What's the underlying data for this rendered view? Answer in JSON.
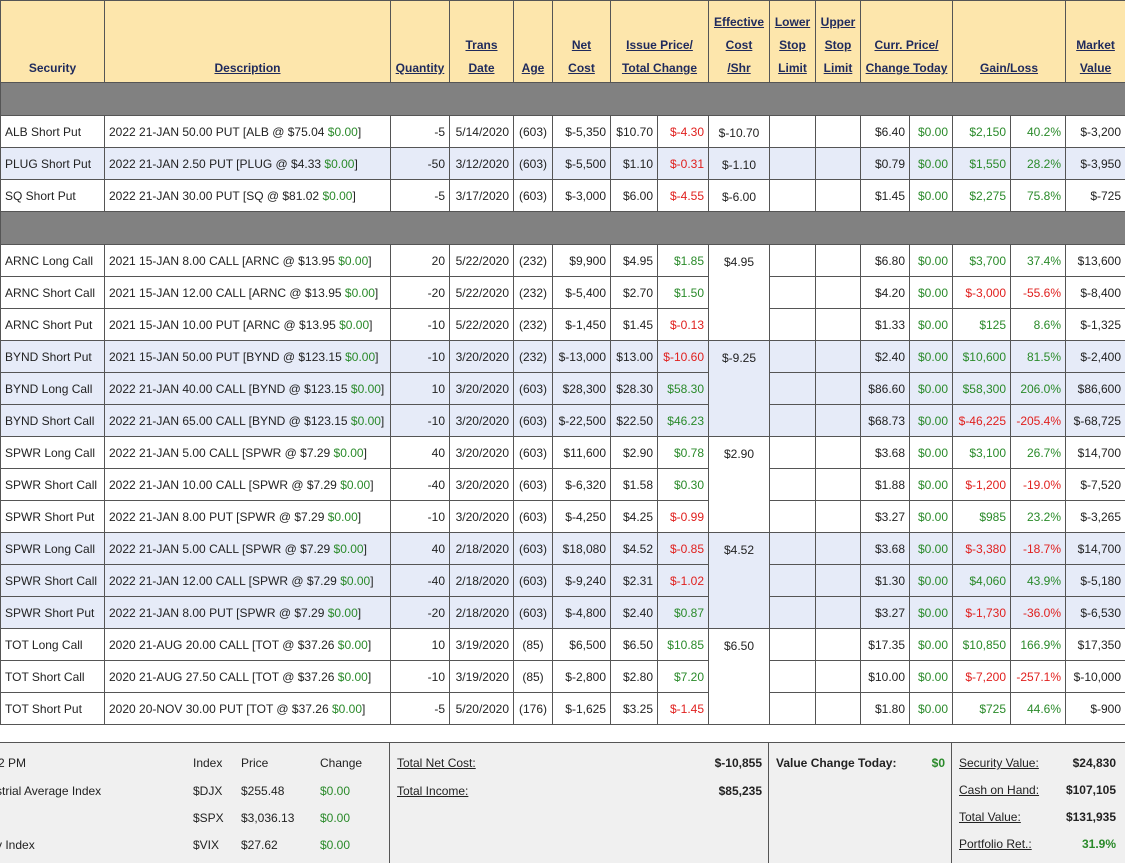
{
  "header": {
    "security": "Security",
    "description": "Description",
    "quantity": "Quantity",
    "trans_date": [
      "Trans",
      "Date"
    ],
    "age": "Age",
    "net_cost": [
      "Net",
      "Cost"
    ],
    "issue": [
      "Issue Price/",
      "Total Change"
    ],
    "effective": [
      "Effective",
      "Cost",
      "/Shr"
    ],
    "lower": [
      "Lower",
      "Stop",
      "Limit"
    ],
    "upper": [
      "Upper",
      "Stop",
      "Limit"
    ],
    "current": [
      "Curr. Price/",
      "Change Today"
    ],
    "gain": "Gain/Loss",
    "market": [
      "Market",
      "Value"
    ]
  },
  "sections": [
    {
      "groups": [
        {
          "effective_cost": "$-10.70",
          "rows": [
            [
              "ALB Short Put",
              "2022 21-JAN 50.00 PUT [ALB @ $75.04",
              "$0.00",
              "]",
              -5,
              "5/14/2020",
              "(603)",
              "$-5,350",
              "$10.70",
              "$-4.30",
              "$6.40",
              "$0.00",
              "$2,150",
              "40.2%",
              "$-3,200"
            ]
          ]
        },
        {
          "effective_cost": "$-1.10",
          "shaded": true,
          "rows": [
            [
              "PLUG Short Put",
              "2022 21-JAN 2.50 PUT [PLUG @ $4.33",
              "$0.00",
              "]",
              -50,
              "3/12/2020",
              "(603)",
              "$-5,500",
              "$1.10",
              "$-0.31",
              "$0.79",
              "$0.00",
              "$1,550",
              "28.2%",
              "$-3,950"
            ]
          ]
        },
        {
          "effective_cost": "$-6.00",
          "rows": [
            [
              "SQ Short Put",
              "2022 21-JAN 30.00 PUT [SQ @ $81.02",
              "$0.00",
              "]",
              -5,
              "3/17/2020",
              "(603)",
              "$-3,000",
              "$6.00",
              "$-4.55",
              "$1.45",
              "$0.00",
              "$2,275",
              "75.8%",
              "$-725"
            ]
          ]
        }
      ]
    },
    {
      "groups": [
        {
          "effective_cost": "$4.95",
          "rows": [
            [
              "ARNC Long Call",
              "2021 15-JAN 8.00 CALL [ARNC @ $13.95",
              "$0.00",
              "]",
              20,
              "5/22/2020",
              "(232)",
              "$9,900",
              "$4.95",
              "$1.85",
              "$6.80",
              "$0.00",
              "$3,700",
              "37.4%",
              "$13,600"
            ],
            [
              "ARNC Short Call",
              "2021 15-JAN 12.00 CALL [ARNC @ $13.95",
              "$0.00",
              "]",
              -20,
              "5/22/2020",
              "(232)",
              "$-5,400",
              "$2.70",
              "$1.50",
              "$4.20",
              "$0.00",
              "$-3,000",
              "-55.6%",
              "$-8,400"
            ],
            [
              "ARNC Short Put",
              "2021 15-JAN 10.00 PUT [ARNC @ $13.95",
              "$0.00",
              "]",
              -10,
              "5/22/2020",
              "(232)",
              "$-1,450",
              "$1.45",
              "$-0.13",
              "$1.33",
              "$0.00",
              "$125",
              "8.6%",
              "$-1,325"
            ]
          ]
        },
        {
          "effective_cost": "$-9.25",
          "shaded": true,
          "rows": [
            [
              "BYND Short Put",
              "2021 15-JAN 50.00 PUT [BYND @ $123.15",
              "$0.00",
              "]",
              -10,
              "3/20/2020",
              "(232)",
              "$-13,000",
              "$13.00",
              "$-10.60",
              "$2.40",
              "$0.00",
              "$10,600",
              "81.5%",
              "$-2,400"
            ],
            [
              "BYND Long Call",
              "2022 21-JAN 40.00 CALL [BYND @ $123.15",
              "$0.00",
              "]",
              10,
              "3/20/2020",
              "(603)",
              "$28,300",
              "$28.30",
              "$58.30",
              "$86.60",
              "$0.00",
              "$58,300",
              "206.0%",
              "$86,600"
            ],
            [
              "BYND Short Call",
              "2022 21-JAN 65.00 CALL [BYND @ $123.15",
              "$0.00",
              "]",
              -10,
              "3/20/2020",
              "(603)",
              "$-22,500",
              "$22.50",
              "$46.23",
              "$68.73",
              "$0.00",
              "$-46,225",
              "-205.4%",
              "$-68,725"
            ]
          ]
        },
        {
          "effective_cost": "$2.90",
          "rows": [
            [
              "SPWR Long Call",
              "2022 21-JAN 5.00 CALL [SPWR @ $7.29",
              "$0.00",
              "]",
              40,
              "3/20/2020",
              "(603)",
              "$11,600",
              "$2.90",
              "$0.78",
              "$3.68",
              "$0.00",
              "$3,100",
              "26.7%",
              "$14,700"
            ],
            [
              "SPWR Short Call",
              "2022 21-JAN 10.00 CALL [SPWR @ $7.29",
              "$0.00",
              "]",
              -40,
              "3/20/2020",
              "(603)",
              "$-6,320",
              "$1.58",
              "$0.30",
              "$1.88",
              "$0.00",
              "$-1,200",
              "-19.0%",
              "$-7,520"
            ],
            [
              "SPWR Short Put",
              "2022 21-JAN 8.00 PUT [SPWR @ $7.29",
              "$0.00",
              "]",
              -10,
              "3/20/2020",
              "(603)",
              "$-4,250",
              "$4.25",
              "$-0.99",
              "$3.27",
              "$0.00",
              "$985",
              "23.2%",
              "$-3,265"
            ]
          ]
        },
        {
          "effective_cost": "$4.52",
          "shaded": true,
          "rows": [
            [
              "SPWR Long Call",
              "2022 21-JAN 5.00 CALL [SPWR @ $7.29",
              "$0.00",
              "]",
              40,
              "2/18/2020",
              "(603)",
              "$18,080",
              "$4.52",
              "$-0.85",
              "$3.68",
              "$0.00",
              "$-3,380",
              "-18.7%",
              "$14,700"
            ],
            [
              "SPWR Short Call",
              "2022 21-JAN 12.00 CALL [SPWR @ $7.29",
              "$0.00",
              "]",
              -40,
              "2/18/2020",
              "(603)",
              "$-9,240",
              "$2.31",
              "$-1.02",
              "$1.30",
              "$0.00",
              "$4,060",
              "43.9%",
              "$-5,180"
            ],
            [
              "SPWR Short Put",
              "2022 21-JAN 8.00 PUT [SPWR @ $7.29",
              "$0.00",
              "]",
              -20,
              "2/18/2020",
              "(603)",
              "$-4,800",
              "$2.40",
              "$0.87",
              "$3.27",
              "$0.00",
              "$-1,730",
              "-36.0%",
              "$-6,530"
            ]
          ]
        },
        {
          "effective_cost": "$6.50",
          "rows": [
            [
              "TOT Long Call",
              "2020 21-AUG 20.00 CALL [TOT @ $37.26",
              "$0.00",
              "]",
              10,
              "3/19/2020",
              "(85)",
              "$6,500",
              "$6.50",
              "$10.85",
              "$17.35",
              "$0.00",
              "$10,850",
              "166.9%",
              "$17,350"
            ],
            [
              "TOT Short Call",
              "2020 21-AUG 27.50 CALL [TOT @ $37.26",
              "$0.00",
              "]",
              -10,
              "3/19/2020",
              "(85)",
              "$-2,800",
              "$2.80",
              "$7.20",
              "$10.00",
              "$0.00",
              "$-7,200",
              "-257.1%",
              "$-10,000"
            ],
            [
              "TOT Short Put",
              "2020 20-NOV 30.00 PUT [TOT @ $37.26",
              "$0.00",
              "]",
              -5,
              "5/20/2020",
              "(176)",
              "$-1,625",
              "$3.25",
              "$-1.45",
              "$1.80",
              "$0.00",
              "$725",
              "44.6%",
              "$-900"
            ]
          ]
        }
      ]
    }
  ],
  "footer": {
    "market": {
      "time": "2 PM",
      "headers": [
        "Index",
        "Price",
        "Change"
      ],
      "rows": [
        [
          "strial Average Index",
          "$DJX",
          "$255.48",
          "$0.00"
        ],
        [
          null,
          "$SPX",
          "$3,036.13",
          "$0.00"
        ],
        [
          "y Index",
          "$VIX",
          "$27.62",
          "$0.00"
        ]
      ]
    },
    "totals": [
      [
        "Total Net Cost:",
        "$-10,855"
      ],
      [
        "Total Income:",
        "$85,235"
      ]
    ],
    "today": [
      "Value Change Today:",
      "$0"
    ],
    "portfolio": [
      [
        "Security Value:",
        "$24,830"
      ],
      [
        "Cash on Hand:",
        "$107,105"
      ],
      [
        "Total Value:",
        "$131,935"
      ],
      [
        "Portfolio Ret.:",
        "31.9%"
      ]
    ]
  }
}
